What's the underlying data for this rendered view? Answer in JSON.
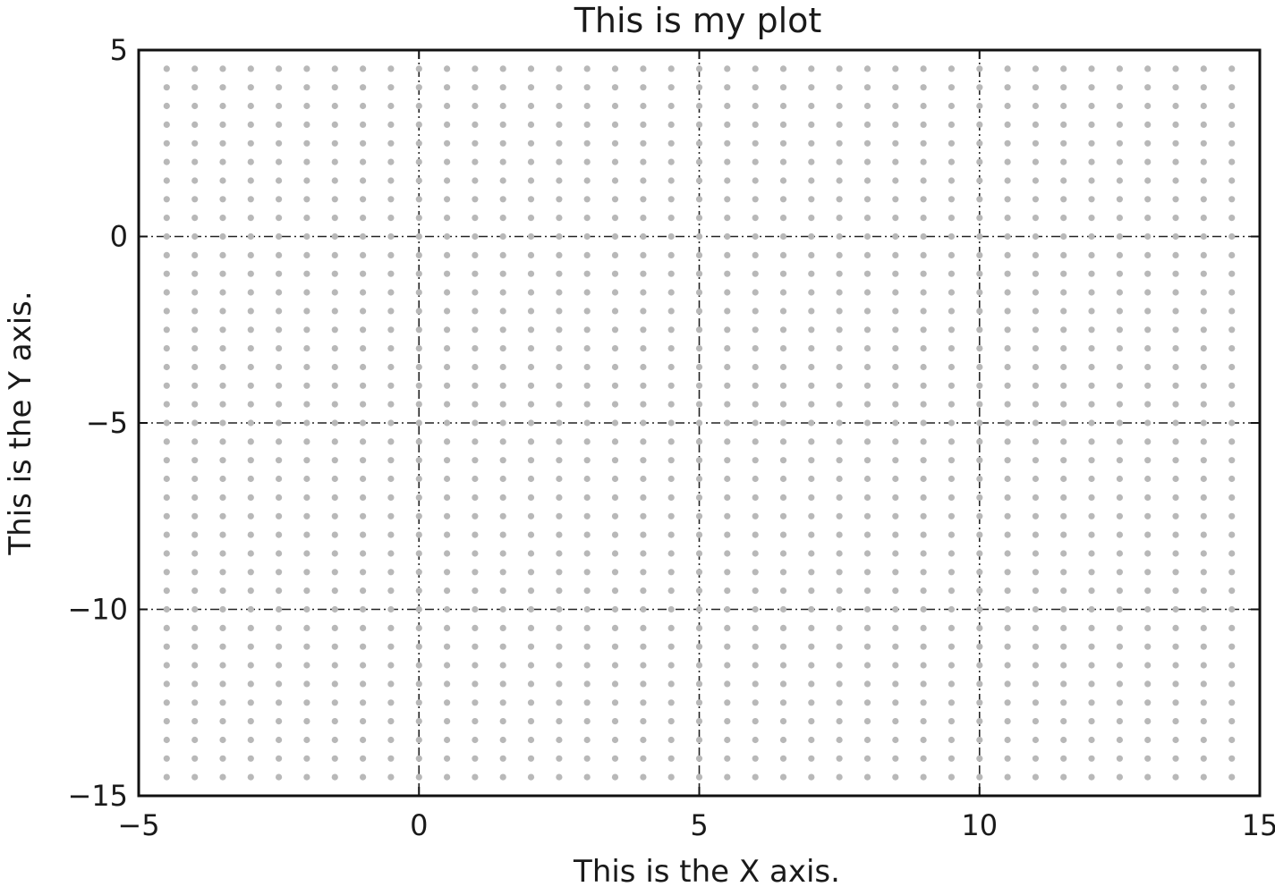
{
  "chart_data": {
    "type": "scatter",
    "title": "This is my plot",
    "xlabel": "This is the X axis.",
    "ylabel": "This is the Y axis.",
    "xlim": [
      -5,
      15
    ],
    "ylim": [
      -15,
      5
    ],
    "xticks": [
      -5,
      0,
      5,
      10,
      15
    ],
    "yticks": [
      -15,
      -10,
      -5,
      0,
      5
    ],
    "xtick_labels": [
      "−5",
      "0",
      "5",
      "10",
      "15"
    ],
    "ytick_labels": [
      "−15",
      "−10",
      "−5",
      "0",
      "5"
    ],
    "grid": true,
    "grid_style": "dash-dot",
    "marker_color": "#b8b8b8",
    "series": [
      {
        "marker": "o",
        "x_range": [
          -4.5,
          14.5
        ],
        "x_step": 0.5,
        "y_range": [
          -14.5,
          4.5
        ],
        "y_step": 0.5
      }
    ]
  }
}
